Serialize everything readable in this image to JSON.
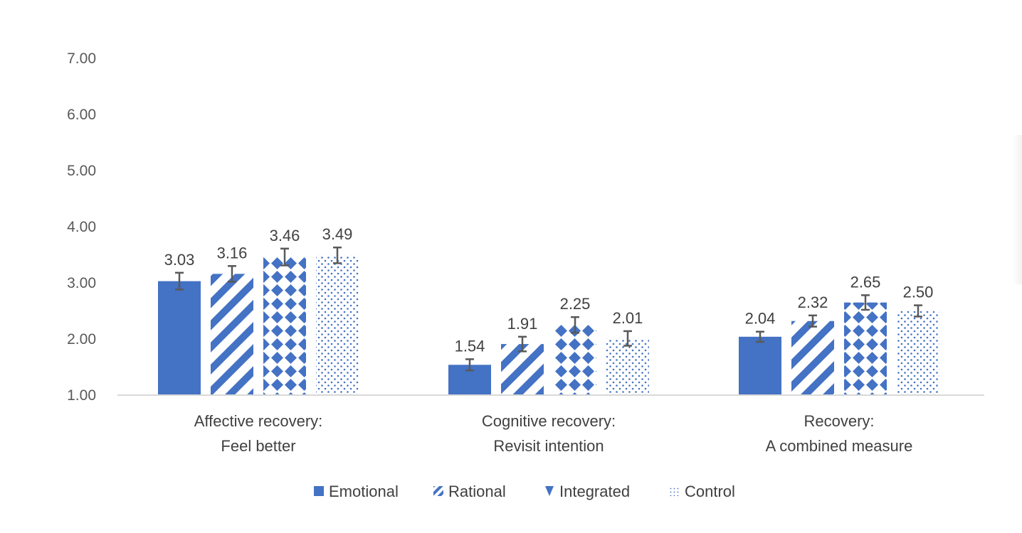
{
  "chart_data": {
    "type": "bar",
    "title": "",
    "xlabel": "",
    "ylabel": "",
    "ylim": [
      1.0,
      7.0
    ],
    "y_ticks": [
      "1.00",
      "2.00",
      "3.00",
      "4.00",
      "5.00",
      "6.00",
      "7.00"
    ],
    "categories": [
      [
        "Affective recovery:",
        "Feel better"
      ],
      [
        "Cognitive recovery:",
        "Revisit intention"
      ],
      [
        "Recovery:",
        "A combined measure"
      ]
    ],
    "series": [
      {
        "name": "Emotional",
        "pattern": "solid",
        "values": [
          3.03,
          1.54,
          2.04
        ],
        "labels": [
          "3.03",
          "1.54",
          "2.04"
        ],
        "error": [
          0.15,
          0.1,
          0.09
        ]
      },
      {
        "name": "Rational",
        "pattern": "diagonal",
        "values": [
          3.16,
          1.91,
          2.32
        ],
        "labels": [
          "3.16",
          "1.91",
          "2.32"
        ],
        "error": [
          0.14,
          0.13,
          0.1
        ]
      },
      {
        "name": "Integrated",
        "pattern": "diamond",
        "values": [
          3.46,
          2.25,
          2.65
        ],
        "labels": [
          "3.46",
          "2.25",
          "2.65"
        ],
        "error": [
          0.15,
          0.14,
          0.13
        ]
      },
      {
        "name": "Control",
        "pattern": "dotted",
        "values": [
          3.49,
          2.01,
          2.5
        ],
        "labels": [
          "3.49",
          "2.01",
          "2.50"
        ],
        "error": [
          0.14,
          0.13,
          0.1
        ]
      }
    ],
    "error_bars": true,
    "grid": false,
    "legend_position": "bottom",
    "colors": {
      "bar": "#4472C4",
      "axis": "#D9D9D9",
      "error": "#595959",
      "text": "#404040"
    }
  }
}
